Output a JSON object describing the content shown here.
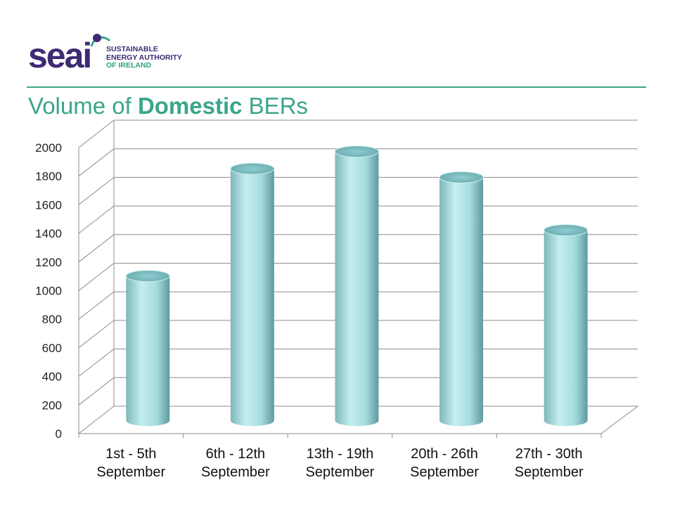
{
  "header": {
    "logo_word": "seai",
    "logo_lines": [
      "SUSTAINABLE",
      "ENERGY AUTHORITY",
      "OF IRELAND"
    ],
    "title_prefix": "Volume of ",
    "title_bold": "Domestic",
    "title_suffix": " BERs"
  },
  "colors": {
    "accent": "#3aa58a",
    "brand": "#3d2a73",
    "bar": "#a9dfe1"
  },
  "chart_data": {
    "type": "bar",
    "categories": [
      [
        "1st - 5th",
        "September"
      ],
      [
        "6th - 12th",
        "September"
      ],
      [
        "13th - 19th",
        "September"
      ],
      [
        "20th - 26th",
        "September"
      ],
      [
        "27th - 30th",
        "September"
      ]
    ],
    "values": [
      1010,
      1760,
      1880,
      1700,
      1330
    ],
    "ylim": [
      0,
      2000
    ],
    "yticks": [
      0,
      200,
      400,
      600,
      800,
      1000,
      1200,
      1400,
      1600,
      1800,
      2000
    ],
    "grid": true,
    "legend": "none"
  }
}
